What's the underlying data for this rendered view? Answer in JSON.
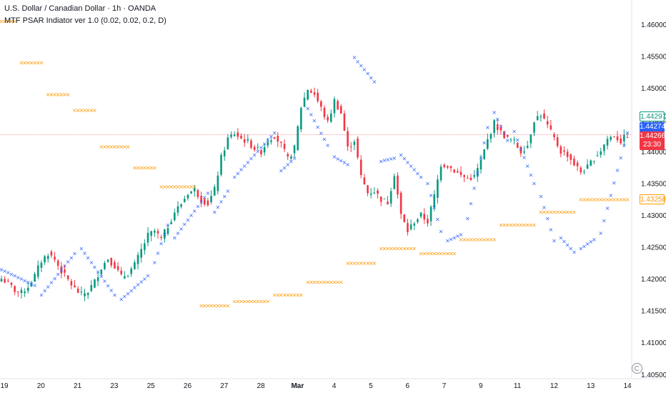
{
  "header": {
    "symbol_line": "U.S. Dollar / Canadian Dollar · 1h · OANDA",
    "indicator_line": "MTF PSAR Indiator ver 1.0 (0.02, 0.02, 0.2, D)"
  },
  "price_tags": {
    "green_outline": "1.44297",
    "blue": "1.44274",
    "last_price": "1.44266",
    "countdown": "23:30",
    "orange": "1.43258"
  },
  "colors": {
    "up": "#089981",
    "down": "#f23645",
    "psar_hourly": "#2962ff",
    "psar_daily": "#ff9800",
    "price_line": "#f23645"
  },
  "chart_data": {
    "type": "candlestick",
    "y_ticks": [
      "1.40500",
      "1.41000",
      "1.41500",
      "1.42000",
      "1.42500",
      "1.43000",
      "1.43500",
      "1.44000",
      "1.44500",
      "1.45000",
      "1.45500",
      "1.46000"
    ],
    "x_ticks": [
      "19",
      "20",
      "21",
      "23",
      "25",
      "26",
      "27",
      "28",
      "Mar",
      "4",
      "5",
      "6",
      "7",
      "9",
      "11",
      "12",
      "13",
      "14"
    ],
    "ylim": [
      1.4043,
      1.4638
    ],
    "last_price": 1.44266,
    "candle_path": [
      [
        0,
        1.42
      ],
      [
        2,
        1.4193
      ],
      [
        4,
        1.4182
      ],
      [
        6,
        1.4178
      ],
      [
        8,
        1.4188
      ],
      [
        10,
        1.4205
      ],
      [
        12,
        1.4228
      ],
      [
        14,
        1.424
      ],
      [
        16,
        1.423
      ],
      [
        18,
        1.4212
      ],
      [
        20,
        1.4198
      ],
      [
        22,
        1.4184
      ],
      [
        24,
        1.4175
      ],
      [
        26,
        1.418
      ],
      [
        28,
        1.4196
      ],
      [
        30,
        1.4218
      ],
      [
        32,
        1.4232
      ],
      [
        34,
        1.422
      ],
      [
        36,
        1.4203
      ],
      [
        38,
        1.4208
      ],
      [
        40,
        1.4222
      ],
      [
        42,
        1.4245
      ],
      [
        44,
        1.4268
      ],
      [
        46,
        1.4275
      ],
      [
        48,
        1.4262
      ],
      [
        50,
        1.4283
      ],
      [
        52,
        1.4305
      ],
      [
        54,
        1.4318
      ],
      [
        56,
        1.4335
      ],
      [
        58,
        1.434
      ],
      [
        60,
        1.4325
      ],
      [
        62,
        1.4318
      ],
      [
        64,
        1.434
      ],
      [
        66,
        1.439
      ],
      [
        68,
        1.442
      ],
      [
        70,
        1.4428
      ],
      [
        72,
        1.442
      ],
      [
        74,
        1.4415
      ],
      [
        76,
        1.4405
      ],
      [
        78,
        1.44
      ],
      [
        80,
        1.4418
      ],
      [
        82,
        1.4425
      ],
      [
        84,
        1.441
      ],
      [
        86,
        1.4388
      ],
      [
        88,
        1.4405
      ],
      [
        90,
        1.447
      ],
      [
        92,
        1.4498
      ],
      [
        94,
        1.449
      ],
      [
        96,
        1.4468
      ],
      [
        98,
        1.4445
      ],
      [
        100,
        1.448
      ],
      [
        102,
        1.446
      ],
      [
        104,
        1.4405
      ],
      [
        106,
        1.4418
      ],
      [
        108,
        1.436
      ],
      [
        110,
        1.4335
      ],
      [
        112,
        1.4338
      ],
      [
        114,
        1.4325
      ],
      [
        116,
        1.432
      ],
      [
        118,
        1.4365
      ],
      [
        120,
        1.43
      ],
      [
        122,
        1.4275
      ],
      [
        124,
        1.429
      ],
      [
        126,
        1.43
      ],
      [
        128,
        1.429
      ],
      [
        130,
        1.433
      ],
      [
        132,
        1.438
      ],
      [
        134,
        1.4378
      ],
      [
        136,
        1.437
      ],
      [
        138,
        1.4362
      ],
      [
        140,
        1.4358
      ],
      [
        142,
        1.436
      ],
      [
        144,
        1.4385
      ],
      [
        146,
        1.4418
      ],
      [
        148,
        1.4445
      ],
      [
        150,
        1.443
      ],
      [
        152,
        1.442
      ],
      [
        154,
        1.4415
      ],
      [
        156,
        1.44
      ],
      [
        158,
        1.441
      ],
      [
        160,
        1.445
      ],
      [
        162,
        1.4458
      ],
      [
        164,
        1.444
      ],
      [
        166,
        1.442
      ],
      [
        168,
        1.44
      ],
      [
        170,
        1.4395
      ],
      [
        172,
        1.438
      ],
      [
        174,
        1.4368
      ],
      [
        176,
        1.4375
      ],
      [
        178,
        1.439
      ],
      [
        180,
        1.4402
      ],
      [
        182,
        1.442
      ],
      [
        184,
        1.4425
      ],
      [
        186,
        1.4416
      ],
      [
        188,
        1.4426
      ]
    ],
    "psar_hourly": [
      [
        [
          0,
          1.4215
        ],
        [
          10,
          1.419
        ]
      ],
      [
        [
          12,
          1.4175
        ],
        [
          22,
          1.424
        ]
      ],
      [
        [
          24,
          1.4248
        ],
        [
          34,
          1.4175
        ]
      ],
      [
        [
          36,
          1.4168
        ],
        [
          44,
          1.4205
        ]
      ],
      [
        [
          46,
          1.4226
        ],
        [
          50,
          1.4285
        ]
      ],
      [
        [
          52,
          1.4265
        ],
        [
          62,
          1.4335
        ]
      ],
      [
        [
          64,
          1.4305
        ],
        [
          68,
          1.4338
        ]
      ],
      [
        [
          70,
          1.436
        ],
        [
          82,
          1.443
        ]
      ],
      [
        [
          84,
          1.437
        ],
        [
          88,
          1.439
        ]
      ],
      [
        [
          92,
          1.4468
        ],
        [
          98,
          1.441
        ]
      ],
      [
        [
          100,
          1.4392
        ],
        [
          104,
          1.438
        ]
      ],
      [
        [
          106,
          1.4548
        ],
        [
          112,
          1.451
        ]
      ],
      [
        [
          114,
          1.4385
        ],
        [
          118,
          1.439
        ]
      ],
      [
        [
          120,
          1.4395
        ],
        [
          126,
          1.436
        ]
      ],
      [
        [
          128,
          1.435
        ],
        [
          132,
          1.4275
        ]
      ],
      [
        [
          134,
          1.426
        ],
        [
          138,
          1.427
        ]
      ],
      [
        [
          140,
          1.4295
        ],
        [
          146,
          1.4438
        ]
      ],
      [
        [
          148,
          1.4462
        ],
        [
          152,
          1.4418
        ]
      ],
      [
        [
          154,
          1.4432
        ],
        [
          160,
          1.435
        ]
      ],
      [
        [
          162,
          1.433
        ],
        [
          166,
          1.426
        ]
      ],
      [
        [
          168,
          1.4265
        ],
        [
          172,
          1.4242
        ]
      ],
      [
        [
          174,
          1.4248
        ],
        [
          178,
          1.4262
        ]
      ],
      [
        [
          180,
          1.4272
        ],
        [
          188,
          1.443
        ]
      ]
    ],
    "psar_daily": [
      [
        [
          0,
          1.4605
        ],
        [
          4,
          1.4605
        ]
      ],
      [
        [
          6,
          1.454
        ],
        [
          12,
          1.454
        ]
      ],
      [
        [
          14,
          1.449
        ],
        [
          20,
          1.449
        ]
      ],
      [
        [
          22,
          1.4465
        ],
        [
          28,
          1.4465
        ]
      ],
      [
        [
          30,
          1.4408
        ],
        [
          38,
          1.4408
        ]
      ],
      [
        [
          40,
          1.4375
        ],
        [
          46,
          1.4375
        ]
      ],
      [
        [
          48,
          1.4345
        ],
        [
          58,
          1.4345
        ]
      ],
      [
        [
          60,
          1.4158
        ],
        [
          68,
          1.4158
        ]
      ],
      [
        [
          70,
          1.4165
        ],
        [
          80,
          1.4165
        ]
      ],
      [
        [
          82,
          1.4175
        ],
        [
          90,
          1.4175
        ]
      ],
      [
        [
          92,
          1.4195
        ],
        [
          102,
          1.4195
        ]
      ],
      [
        [
          104,
          1.4225
        ],
        [
          112,
          1.4225
        ]
      ],
      [
        [
          114,
          1.4248
        ],
        [
          124,
          1.4248
        ]
      ],
      [
        [
          126,
          1.424
        ],
        [
          136,
          1.424
        ]
      ],
      [
        [
          138,
          1.4262
        ],
        [
          148,
          1.4262
        ]
      ],
      [
        [
          150,
          1.4285
        ],
        [
          160,
          1.4285
        ]
      ],
      [
        [
          162,
          1.4305
        ],
        [
          172,
          1.4305
        ]
      ],
      [
        [
          174,
          1.4325
        ],
        [
          188,
          1.4325
        ]
      ]
    ]
  }
}
